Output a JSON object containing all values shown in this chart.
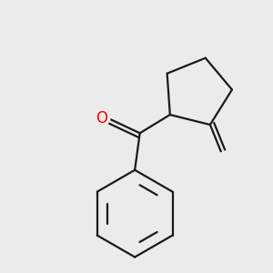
{
  "background_color": "#ebebeb",
  "bond_color": "#1a1a1a",
  "oxygen_color": "#ff0000",
  "line_width": 1.6,
  "fig_size": [
    3.0,
    3.0
  ],
  "dpi": 100
}
